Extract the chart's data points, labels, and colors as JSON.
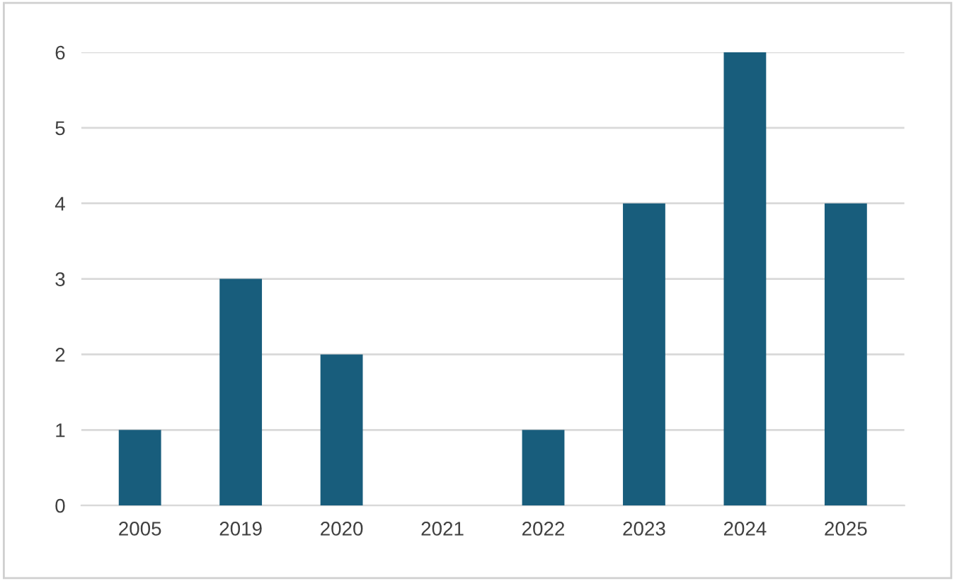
{
  "chart_data": {
    "type": "bar",
    "categories": [
      "2005",
      "2019",
      "2020",
      "2021",
      "2022",
      "2023",
      "2024",
      "2025"
    ],
    "values": [
      1,
      3,
      2,
      0,
      1,
      4,
      6,
      4
    ],
    "color": "#185d7c",
    "ylim": [
      0,
      6
    ],
    "yticks": [
      0,
      1,
      2,
      3,
      4,
      5,
      6
    ],
    "grid": "y",
    "legend": false
  }
}
